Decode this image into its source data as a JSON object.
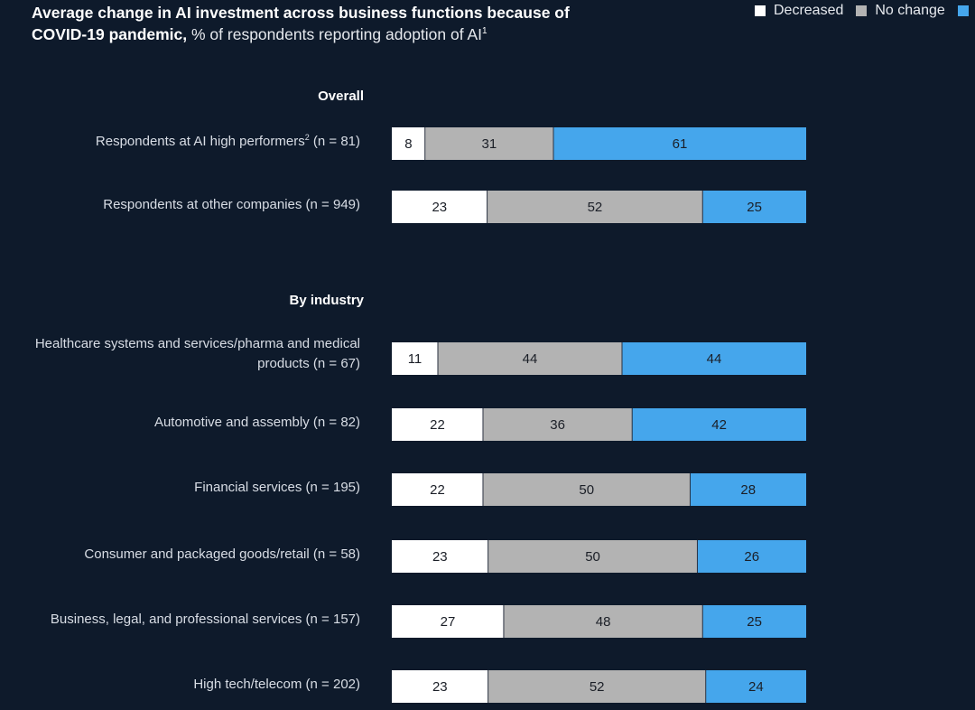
{
  "title": {
    "bold": "Average change in AI investment across business functions because of COVID-19 pandemic,",
    "regular": " % of respondents reporting adoption of AI",
    "footnote": "1"
  },
  "legend": [
    {
      "label": "Decreased",
      "color": "#ffffff"
    },
    {
      "label": "No change",
      "color": "#b3b3b3"
    },
    {
      "label": "",
      "color": "#45a6ec"
    }
  ],
  "chart_data": {
    "type": "bar",
    "orientation": "horizontal",
    "stacked": true,
    "title": "Average change in AI investment across business functions because of COVID-19 pandemic, % of respondents reporting adoption of AI",
    "xlabel": "",
    "ylabel": "",
    "xlim": [
      0,
      100
    ],
    "legend_position": "top-right",
    "series_names": [
      "Decreased",
      "No change",
      "(label cut off)"
    ],
    "colors": [
      "#ffffff",
      "#b3b3b3",
      "#45a6ec"
    ],
    "groups": [
      {
        "heading": "Overall",
        "rows": [
          {
            "label": "Respondents at AI high performers",
            "footnote": "2",
            "n": "(n = 81)",
            "values": [
              8,
              31,
              61
            ]
          },
          {
            "label": "Respondents at other companies",
            "footnote": "",
            "n": "(n = 949)",
            "values": [
              23,
              52,
              25
            ]
          }
        ]
      },
      {
        "heading": "By industry",
        "rows": [
          {
            "label": "Healthcare systems and services/pharma and medical products",
            "footnote": "",
            "n": "(n = 67)",
            "values": [
              11,
              44,
              44
            ]
          },
          {
            "label": "Automotive and assembly",
            "footnote": "",
            "n": "(n = 82)",
            "values": [
              22,
              36,
              42
            ]
          },
          {
            "label": "Financial services",
            "footnote": "",
            "n": "(n = 195)",
            "values": [
              22,
              50,
              28
            ]
          },
          {
            "label": "Consumer and packaged goods/retail",
            "footnote": "",
            "n": "(n = 58)",
            "values": [
              23,
              50,
              26
            ]
          },
          {
            "label": "Business, legal, and professional services",
            "footnote": "",
            "n": "(n = 157)",
            "values": [
              27,
              48,
              25
            ]
          },
          {
            "label": "High tech/telecom",
            "footnote": "",
            "n": "(n = 202)",
            "values": [
              23,
              52,
              24
            ]
          }
        ]
      }
    ]
  }
}
